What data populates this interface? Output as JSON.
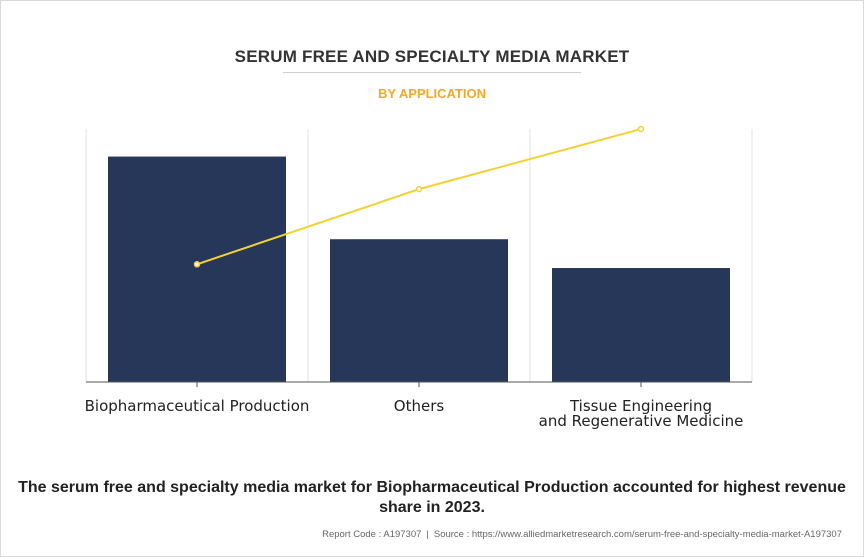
{
  "header": {
    "title": "SERUM FREE AND SPECIALTY MEDIA MARKET",
    "subtitle": "BY APPLICATION"
  },
  "colors": {
    "bar": "#26375a",
    "line": "#f5d033",
    "subtitle": "#f0a92a",
    "grid": "#e3e3e3"
  },
  "chart_data": {
    "type": "bar",
    "categories": [
      [
        "Biopharmaceutical Production"
      ],
      [
        "Others"
      ],
      [
        "Tissue Engineering",
        "and Regenerative Medicine"
      ]
    ],
    "series": [
      {
        "kind": "bar",
        "values": [
          90,
          57,
          45.5
        ]
      },
      {
        "kind": "line",
        "values": [
          47,
          77,
          101
        ]
      }
    ],
    "ylim": [
      0,
      101
    ],
    "grid": true,
    "legend": "none"
  },
  "footer": {
    "summary": "The serum free and specialty media market for Biopharmaceutical Production accounted for highest revenue share in 2023.",
    "report_code": "Report Code : A197307",
    "source": "Source : https://www.alliedmarketresearch.com/serum-free-and-specialty-media-market-A197307",
    "separator": "|"
  }
}
